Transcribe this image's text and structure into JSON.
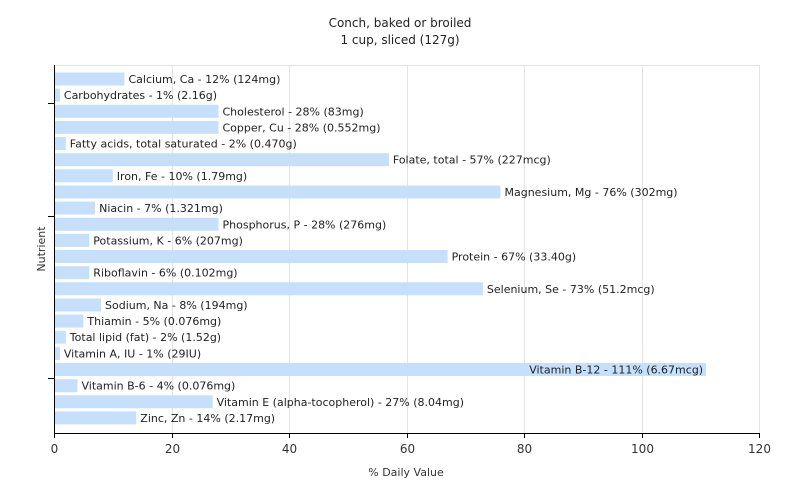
{
  "chart_data": {
    "type": "bar",
    "orientation": "horizontal",
    "title": "Conch, baked or broiled",
    "subtitle": "1 cup, sliced (127g)",
    "xlabel": "% Daily Value",
    "ylabel": "Nutrient",
    "xlim": [
      0,
      120
    ],
    "xticks": [
      0,
      20,
      40,
      60,
      80,
      100,
      120
    ],
    "grid": true,
    "bar_color": "#c6dffb",
    "categories": [
      "Calcium, Ca",
      "Carbohydrates",
      "Cholesterol",
      "Copper, Cu",
      "Fatty acids, total saturated",
      "Folate, total",
      "Iron, Fe",
      "Magnesium, Mg",
      "Niacin",
      "Phosphorus, P",
      "Potassium, K",
      "Protein",
      "Riboflavin",
      "Selenium, Se",
      "Sodium, Na",
      "Thiamin",
      "Total lipid (fat)",
      "Vitamin A, IU",
      "Vitamin B-12",
      "Vitamin B-6",
      "Vitamin E (alpha-tocopherol)",
      "Zinc, Zn"
    ],
    "values": [
      12,
      1,
      28,
      28,
      2,
      57,
      10,
      76,
      7,
      28,
      6,
      67,
      6,
      73,
      8,
      5,
      2,
      1,
      111,
      4,
      27,
      14
    ],
    "labels": [
      "Calcium, Ca - 12% (124mg)",
      "Carbohydrates - 1% (2.16g)",
      "Cholesterol - 28% (83mg)",
      "Copper, Cu - 28% (0.552mg)",
      "Fatty acids, total saturated - 2% (0.470g)",
      "Folate, total - 57% (227mcg)",
      "Iron, Fe - 10% (1.79mg)",
      "Magnesium, Mg - 76% (302mg)",
      "Niacin - 7% (1.321mg)",
      "Phosphorus, P - 28% (276mg)",
      "Potassium, K - 6% (207mg)",
      "Protein - 67% (33.40g)",
      "Riboflavin - 6% (0.102mg)",
      "Selenium, Se - 73% (51.2mcg)",
      "Sodium, Na - 8% (194mg)",
      "Thiamin - 5% (0.076mg)",
      "Total lipid (fat) - 2% (1.52g)",
      "Vitamin A, IU - 1% (29IU)",
      "Vitamin B-12 - 111% (6.67mcg)",
      "Vitamin B-6 - 4% (0.076mg)",
      "Vitamin E (alpha-tocopherol) - 27% (8.04mg)",
      "Zinc, Zn - 14% (2.17mg)"
    ]
  }
}
